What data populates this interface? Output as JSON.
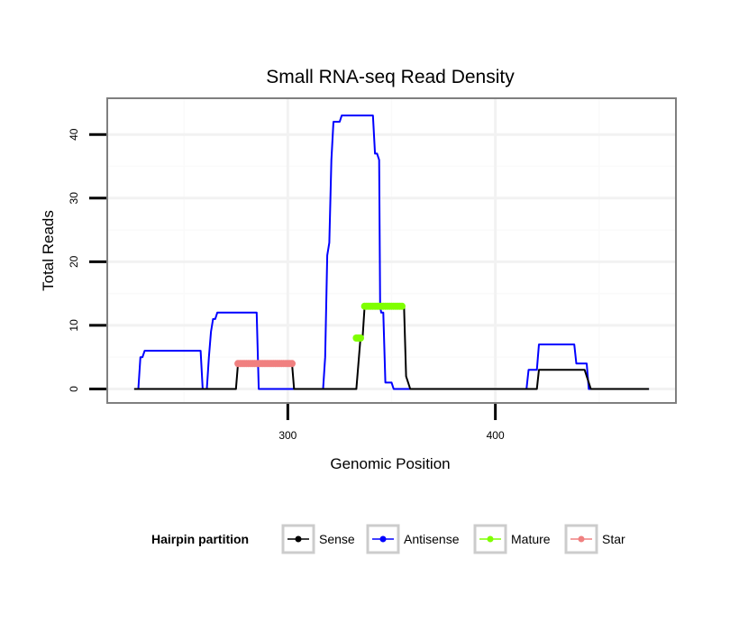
{
  "chart_data": {
    "type": "line",
    "title": "Small RNA-seq Read Density",
    "xlabel": "Genomic Position",
    "ylabel": "Total Reads",
    "xlim": [
      213,
      487
    ],
    "ylim": [
      -2.2,
      45.7
    ],
    "x_ticks": [
      300,
      400
    ],
    "y_ticks": [
      0,
      10,
      20,
      30,
      40
    ],
    "grid": true,
    "legend": {
      "title": "Hairpin partition",
      "position": "bottom",
      "entries": [
        "Sense",
        "Antisense",
        "Mature",
        "Star"
      ]
    },
    "series": [
      {
        "name": "Antisense",
        "color": "#0000ff",
        "style": "line",
        "points": [
          [
            226,
            0
          ],
          [
            228,
            0
          ],
          [
            229,
            5
          ],
          [
            230,
            5
          ],
          [
            231,
            6
          ],
          [
            233,
            6
          ],
          [
            258,
            6
          ],
          [
            259,
            0
          ],
          [
            261,
            0
          ],
          [
            262,
            5
          ],
          [
            263,
            9
          ],
          [
            264,
            11
          ],
          [
            265,
            11
          ],
          [
            266,
            12
          ],
          [
            285,
            12
          ],
          [
            286,
            0
          ],
          [
            317,
            0
          ],
          [
            318,
            5
          ],
          [
            319,
            21
          ],
          [
            320,
            23
          ],
          [
            321,
            36
          ],
          [
            322,
            42
          ],
          [
            325,
            42
          ],
          [
            326,
            43
          ],
          [
            341,
            43
          ],
          [
            342,
            37
          ],
          [
            343,
            37
          ],
          [
            344,
            36
          ],
          [
            344.5,
            13
          ],
          [
            345,
            12
          ],
          [
            346,
            12
          ],
          [
            347,
            1
          ],
          [
            349,
            1
          ],
          [
            350,
            1
          ],
          [
            351,
            0
          ],
          [
            415,
            0
          ],
          [
            416,
            3
          ],
          [
            420,
            3
          ],
          [
            421,
            7
          ],
          [
            438,
            7
          ],
          [
            439,
            4
          ],
          [
            444,
            4
          ],
          [
            445,
            0
          ],
          [
            474,
            0
          ]
        ]
      },
      {
        "name": "Sense",
        "color": "#000000",
        "style": "line",
        "points": [
          [
            226,
            0
          ],
          [
            275,
            0
          ],
          [
            276,
            4
          ],
          [
            302,
            4
          ],
          [
            303,
            0
          ],
          [
            333,
            0
          ],
          [
            335,
            8
          ],
          [
            336,
            8
          ],
          [
            337,
            13
          ],
          [
            356,
            13
          ],
          [
            357,
            2
          ],
          [
            359,
            0
          ],
          [
            420,
            0
          ],
          [
            421,
            3
          ],
          [
            443,
            3
          ],
          [
            446,
            0
          ],
          [
            474,
            0
          ]
        ]
      },
      {
        "name": "Mature",
        "color": "#7fff00",
        "style": "markers",
        "points": [
          [
            333,
            8
          ],
          [
            334,
            8
          ],
          [
            335,
            8
          ],
          [
            337,
            13
          ],
          [
            338,
            13
          ],
          [
            339,
            13
          ],
          [
            340,
            13
          ],
          [
            341,
            13
          ],
          [
            342,
            13
          ],
          [
            343,
            13
          ],
          [
            344,
            13
          ],
          [
            345,
            13
          ],
          [
            346,
            13
          ],
          [
            347,
            13
          ],
          [
            348,
            13
          ],
          [
            349,
            13
          ],
          [
            350,
            13
          ],
          [
            351,
            13
          ],
          [
            352,
            13
          ],
          [
            353,
            13
          ],
          [
            354,
            13
          ],
          [
            355,
            13
          ]
        ]
      },
      {
        "name": "Star",
        "color": "#f08080",
        "style": "markers",
        "points": [
          [
            276,
            4
          ],
          [
            277,
            4
          ],
          [
            278,
            4
          ],
          [
            279,
            4
          ],
          [
            280,
            4
          ],
          [
            281,
            4
          ],
          [
            282,
            4
          ],
          [
            283,
            4
          ],
          [
            284,
            4
          ],
          [
            285,
            4
          ],
          [
            286,
            4
          ],
          [
            287,
            4
          ],
          [
            288,
            4
          ],
          [
            289,
            4
          ],
          [
            290,
            4
          ],
          [
            291,
            4
          ],
          [
            292,
            4
          ],
          [
            293,
            4
          ],
          [
            294,
            4
          ],
          [
            295,
            4
          ],
          [
            296,
            4
          ],
          [
            297,
            4
          ],
          [
            298,
            4
          ],
          [
            299,
            4
          ],
          [
            300,
            4
          ],
          [
            301,
            4
          ],
          [
            302,
            4
          ]
        ]
      }
    ]
  }
}
